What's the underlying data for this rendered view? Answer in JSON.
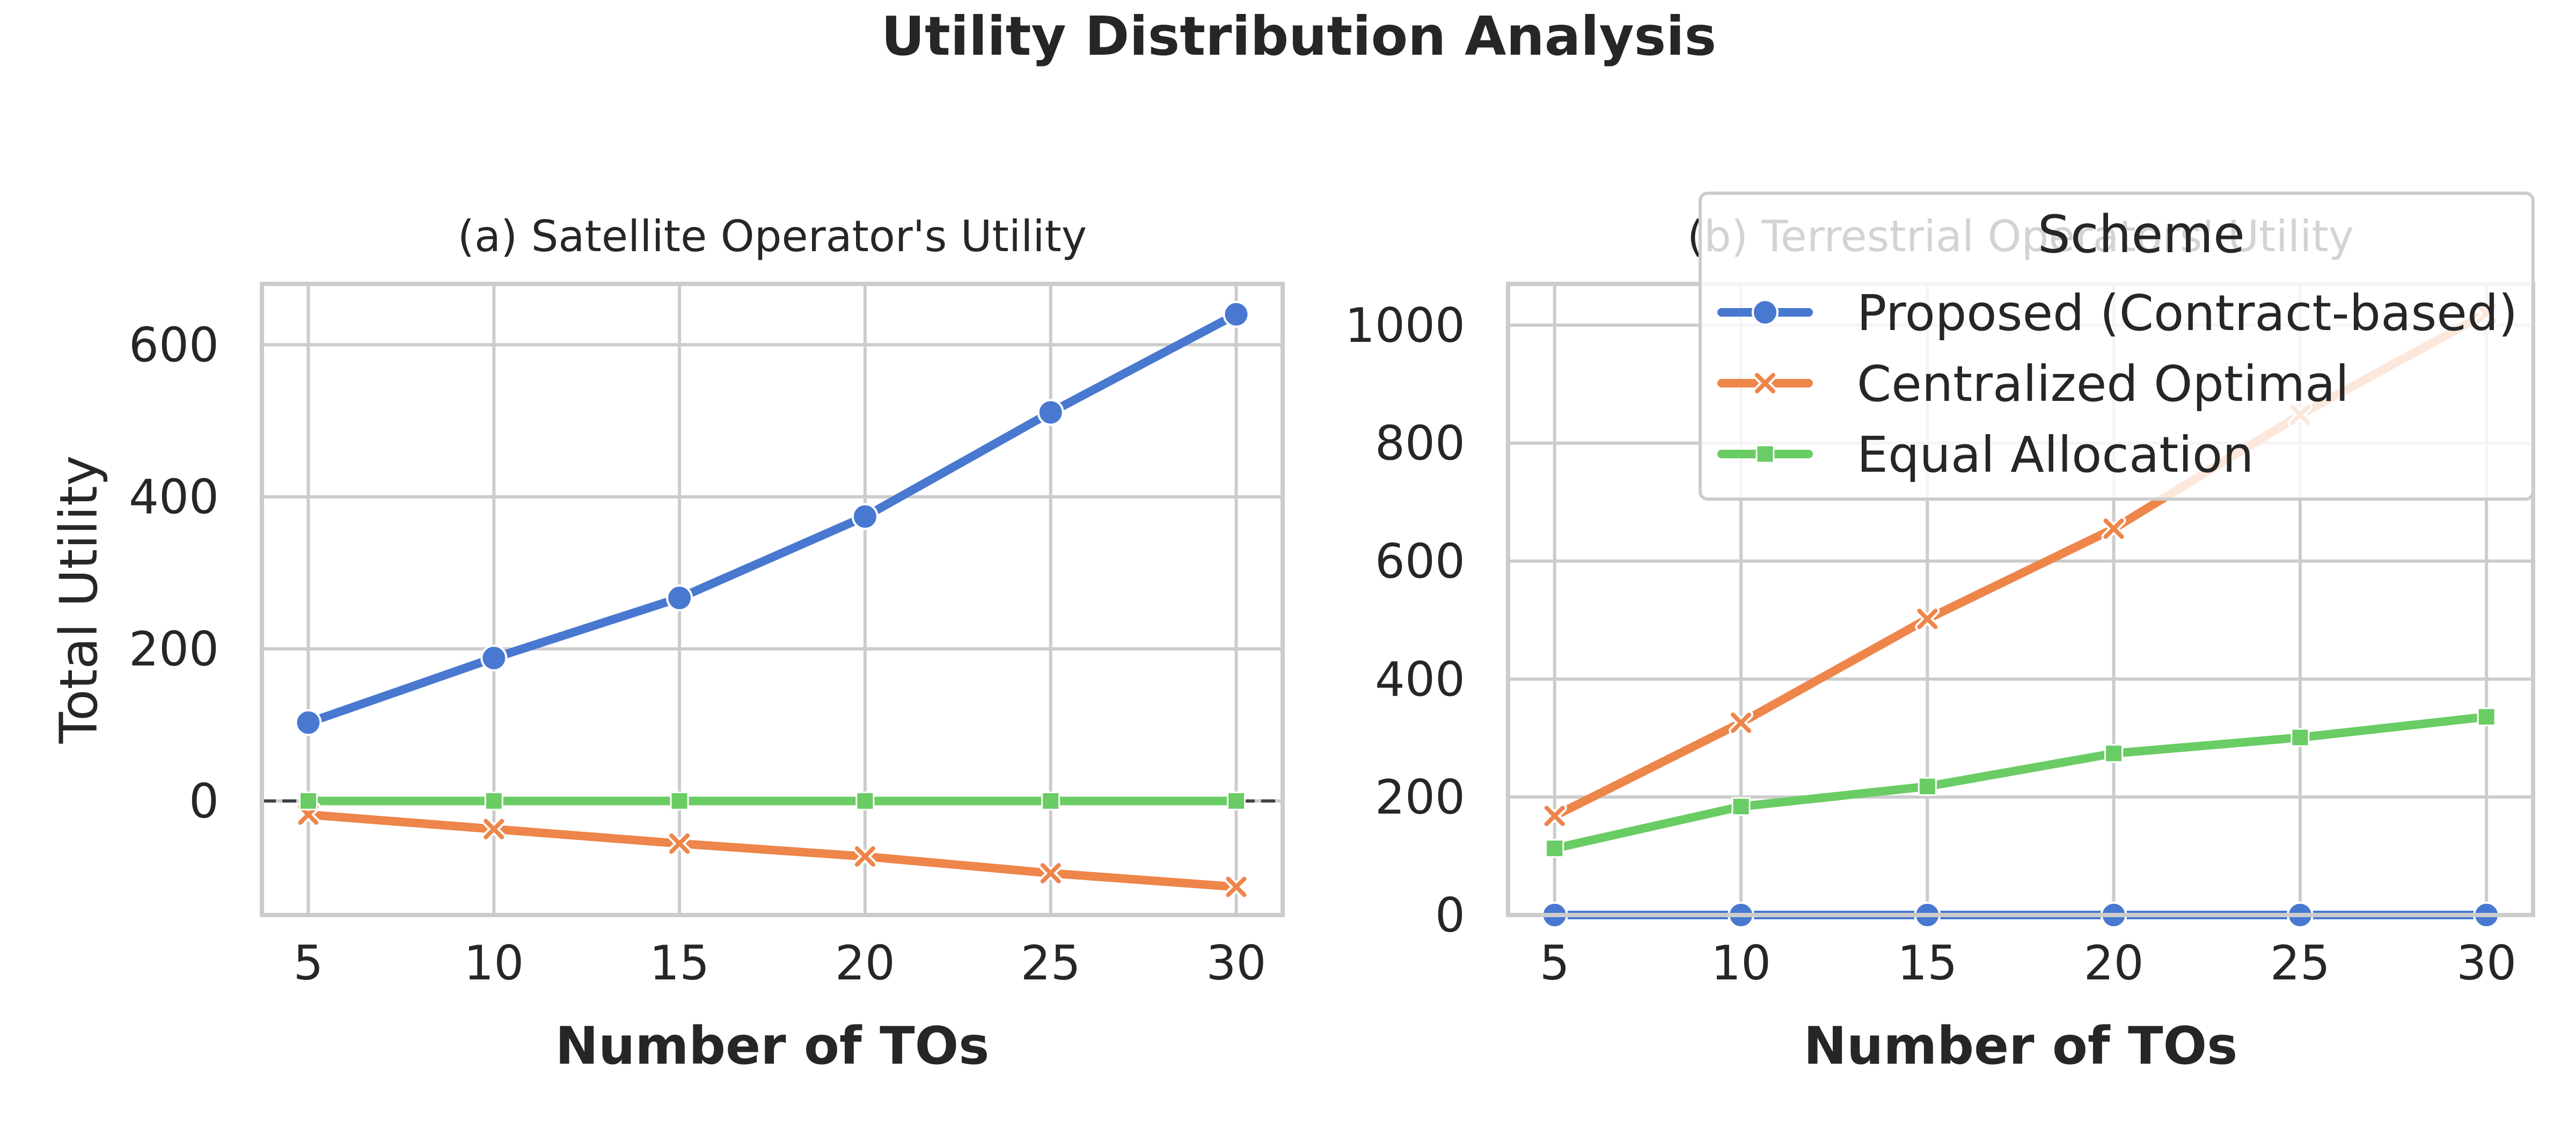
{
  "title": "Utility Distribution Analysis",
  "colors": {
    "proposed": "#4878d0",
    "centralized": "#ee854a",
    "equal": "#6acc64",
    "grid": "#cccccc",
    "frame": "#cccccc",
    "text": "#262626",
    "zero_line": "#404040"
  },
  "legend": {
    "title": "Scheme",
    "placement": "upper-right (overlapping panel b)",
    "entries": [
      "Proposed (Contract-based)",
      "Centralized Optimal",
      "Equal Allocation"
    ],
    "markers": [
      "circle",
      "x",
      "square"
    ]
  },
  "chart_data": [
    {
      "type": "line",
      "title": "(a) Satellite Operator's Utility",
      "xlabel": "Number of TOs",
      "ylabel": "Total Utility",
      "x": [
        5,
        10,
        15,
        20,
        25,
        30
      ],
      "xticks": [
        "5",
        "10",
        "15",
        "20",
        "25",
        "30"
      ],
      "xlim": [
        3.75,
        31.25
      ],
      "ylim": [
        -150,
        680
      ],
      "yticks": [
        "0",
        "200",
        "400",
        "600"
      ],
      "grid": true,
      "reference_line": {
        "y": 0,
        "style": "dashed"
      },
      "series": [
        {
          "name": "Proposed (Contract-based)",
          "values": [
            103,
            188,
            267,
            374,
            511,
            640
          ]
        },
        {
          "name": "Centralized Optimal",
          "values": [
            -18,
            -37,
            -56,
            -73,
            -95,
            -113
          ]
        },
        {
          "name": "Equal Allocation",
          "values": [
            0,
            0,
            0,
            0,
            0,
            0
          ]
        }
      ]
    },
    {
      "type": "line",
      "title": "(b) Terrestrial Operators' Utility",
      "xlabel": "Number of TOs",
      "ylabel": "",
      "x": [
        5,
        10,
        15,
        20,
        25,
        30
      ],
      "xticks": [
        "5",
        "10",
        "15",
        "20",
        "25",
        "30"
      ],
      "xlim": [
        3.75,
        31.25
      ],
      "ylim": [
        0,
        1070
      ],
      "yticks": [
        "0",
        "200",
        "400",
        "600",
        "800",
        "1000"
      ],
      "grid": true,
      "series": [
        {
          "name": "Proposed (Contract-based)",
          "values": [
            0,
            0,
            0,
            0,
            0,
            0
          ]
        },
        {
          "name": "Centralized Optimal",
          "values": [
            168,
            326,
            502,
            655,
            848,
            1020
          ]
        },
        {
          "name": "Equal Allocation",
          "values": [
            113,
            184,
            218,
            274,
            301,
            336
          ]
        }
      ]
    }
  ]
}
